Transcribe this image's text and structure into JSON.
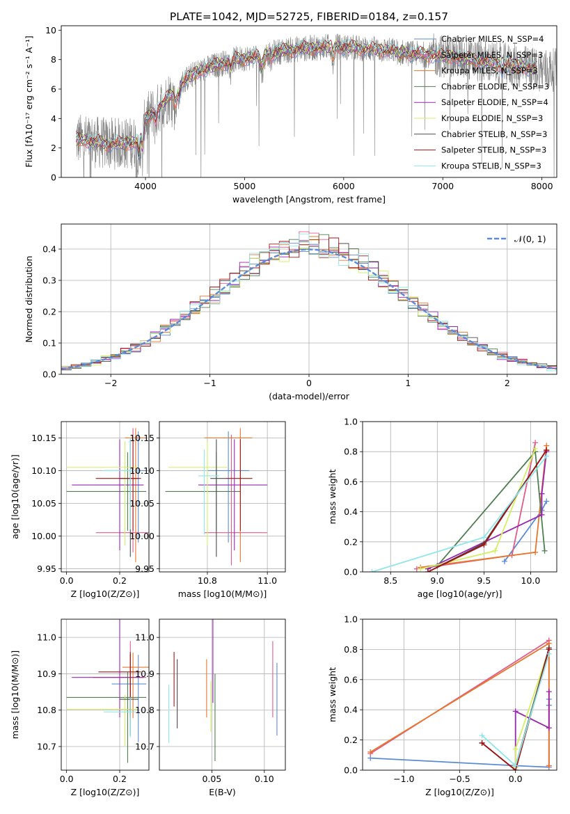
{
  "figure": {
    "title": "PLATE=1042, MJD=52725, FIBERID=0184, z=0.157"
  },
  "colors": {
    "c1": "#5b8bd6",
    "c2": "#e15b8a",
    "c3": "#e8762b",
    "c4": "#4f7f50",
    "c5": "#9a25b0",
    "c6": "#d2f064",
    "c7": "#4a4a4a",
    "c8": "#a61212",
    "c9": "#8fe6e8",
    "data": "#808080",
    "normal": "#5b8bd6"
  },
  "chart_data": [
    {
      "id": "spectrum",
      "type": "line",
      "xlabel": "wavelength [Angstrom, rest frame]",
      "ylabel": "Flux [fλ10⁻¹⁷ erg cm⁻² s⁻¹ A⁻¹]",
      "xlim": [
        3150,
        8150
      ],
      "ylim": [
        0,
        10.3
      ],
      "xticks": [
        4000,
        5000,
        6000,
        7000,
        8000
      ],
      "yticks": [
        0,
        2,
        4,
        6,
        8,
        10
      ],
      "grid": false,
      "legend_position": "right",
      "continuum": {
        "x": [
          3300,
          3400,
          3500,
          3600,
          3700,
          3800,
          3900,
          3950,
          4000,
          4100,
          4200,
          4300,
          4400,
          4500,
          4700,
          4900,
          5100,
          5300,
          5500,
          5700,
          5900,
          6100,
          6300,
          6500,
          6700,
          6900,
          7100,
          7300,
          7500,
          7700,
          7900,
          8000
        ],
        "y": [
          2.6,
          2.5,
          2.4,
          2.3,
          2.3,
          2.3,
          2.4,
          3.0,
          3.9,
          4.5,
          5.2,
          5.9,
          6.6,
          7.1,
          7.6,
          8.0,
          8.2,
          8.5,
          8.7,
          8.8,
          8.9,
          8.8,
          8.7,
          8.6,
          8.4,
          8.3,
          8.2,
          8.0,
          7.8,
          7.6,
          7.4,
          7.3
        ]
      },
      "legend": [
        "Chabrier MILES, N_SSP=4",
        "Salpeter MILES, N_SSP=3",
        "Kroupa MILES, N_SSP=3",
        "Chabrier ELODIE, N_SSP=3",
        "Salpeter ELODIE, N_SSP=4",
        "Kroupa ELODIE, N_SSP=3",
        "Chabrier STELIB, N_SSP=3",
        "Salpeter STELIB, N_SSP=3",
        "Kroupa STELIB, N_SSP=3"
      ]
    },
    {
      "id": "residuals",
      "type": "histogram",
      "xlabel": "(data-model)/error",
      "ylabel": "Normed distribution",
      "xlim": [
        -2.5,
        2.5
      ],
      "ylim": [
        0,
        0.48
      ],
      "xticks": [
        -2,
        -1,
        0,
        1,
        2
      ],
      "yticks": [
        0.0,
        0.1,
        0.2,
        0.3,
        0.4
      ],
      "grid": true,
      "legend_label": "𝒩(0, 1)",
      "legend_position": "top-right",
      "bin_width": 0.1,
      "bin_start": -2.5
    },
    {
      "id": "age-vs-Z",
      "type": "errorbar",
      "xlabel": "Z [log10(Z/Z⊙)]",
      "ylabel": "age  [log10(age/yr)]",
      "xlim": [
        -0.02,
        0.31
      ],
      "ylim": [
        9.945,
        10.175
      ],
      "xticks": [
        0.0,
        0.2
      ],
      "yticks": [
        9.95,
        10.0,
        10.05,
        10.1,
        10.15
      ],
      "grid": true,
      "points": [
        {
          "x": 0.27,
          "y": 10.1,
          "xerr": [
            0.13,
            0.03
          ],
          "yerr": [
            0.11,
            0.06
          ]
        },
        {
          "x": 0.25,
          "y": 10.005,
          "xerr": [
            0.14,
            0.06
          ],
          "yerr": [
            0.03,
            0.16
          ]
        },
        {
          "x": 0.26,
          "y": 10.15,
          "xerr": [
            0.04,
            0.04
          ],
          "yerr": [
            0.19,
            0.015
          ]
        },
        {
          "x": 0.23,
          "y": 10.068,
          "xerr": [
            0.23,
            0.07
          ],
          "yerr": [
            0.06,
            0.06
          ]
        },
        {
          "x": 0.2,
          "y": 10.078,
          "xerr": [
            0.18,
            0.09
          ],
          "yerr": [
            0.1,
            0.07
          ]
        },
        {
          "x": 0.22,
          "y": 10.105,
          "xerr": [
            0.22,
            0.05
          ],
          "yerr": [
            0.12,
            0.04
          ]
        },
        {
          "x": 0.24,
          "y": 10.088,
          "xerr": [
            0.04,
            0.03
          ],
          "yerr": [
            0.12,
            0.06
          ]
        },
        {
          "x": 0.25,
          "y": 10.088,
          "xerr": [
            0.14,
            0.03
          ],
          "yerr": [
            0.08,
            0.06
          ]
        },
        {
          "x": 0.24,
          "y": 10.1,
          "xerr": [
            0.1,
            0.03
          ],
          "yerr": [
            0.09,
            0.05
          ]
        }
      ]
    },
    {
      "id": "age-vs-mass",
      "type": "errorbar",
      "xlabel": "mass [log10(M/M⊙)]",
      "ylabel": "",
      "xlim": [
        10.64,
        11.06
      ],
      "ylim": [
        9.945,
        10.175
      ],
      "xticks": [
        10.8,
        11.0
      ],
      "yticks": [
        9.95,
        10.0,
        10.05,
        10.1,
        10.15
      ],
      "grid": true,
      "points": [
        {
          "x": 10.87,
          "y": 10.1,
          "xerr": [
            0.07,
            0.07
          ],
          "yerr": [
            0.11,
            0.06
          ]
        },
        {
          "x": 10.88,
          "y": 10.005,
          "xerr": [
            0.09,
            0.12
          ],
          "yerr": [
            0.05,
            0.15
          ]
        },
        {
          "x": 10.91,
          "y": 10.15,
          "xerr": [
            0.12,
            0.04
          ],
          "yerr": [
            0.19,
            0.015
          ]
        },
        {
          "x": 10.83,
          "y": 10.068,
          "xerr": [
            0.17,
            0.08
          ],
          "yerr": [
            0.06,
            0.06
          ]
        },
        {
          "x": 10.89,
          "y": 10.078,
          "xerr": [
            0.12,
            0.11
          ],
          "yerr": [
            0.1,
            0.07
          ]
        },
        {
          "x": 10.8,
          "y": 10.105,
          "xerr": [
            0.13,
            0.07
          ],
          "yerr": [
            0.12,
            0.04
          ]
        },
        {
          "x": 10.83,
          "y": 10.088,
          "xerr": [
            0.02,
            0.03
          ],
          "yerr": [
            0.12,
            0.06
          ]
        },
        {
          "x": 10.91,
          "y": 10.088,
          "xerr": [
            0.05,
            0.04
          ],
          "yerr": [
            0.08,
            0.06
          ]
        },
        {
          "x": 10.79,
          "y": 10.092,
          "xerr": [
            0.02,
            0.05
          ],
          "yerr": [
            0.09,
            0.04
          ]
        }
      ]
    },
    {
      "id": "weight-vs-age",
      "type": "line",
      "xlabel": "age  [log10(age/yr)]",
      "ylabel": "mass weight",
      "xlim": [
        8.2,
        10.28
      ],
      "ylim": [
        0,
        1.0
      ],
      "xticks": [
        8.5,
        9.0,
        9.5,
        10.0
      ],
      "yticks": [
        0.0,
        0.2,
        0.4,
        0.6,
        0.8,
        1.0
      ],
      "grid": true,
      "series": [
        {
          "x": [
            9.72,
            10.12,
            10.17
          ],
          "y": [
            0.07,
            0.41,
            0.47
          ]
        },
        {
          "x": [
            8.78,
            9.8,
            10.05
          ],
          "y": [
            0.02,
            0.11,
            0.86
          ]
        },
        {
          "x": [
            8.82,
            10.05,
            10.17
          ],
          "y": [
            0.03,
            0.13,
            0.84
          ]
        },
        {
          "x": [
            9.0,
            10.05,
            10.15
          ],
          "y": [
            0.04,
            0.8,
            0.14
          ]
        },
        {
          "x": [
            8.9,
            10.12,
            10.12,
            10.17
          ],
          "y": [
            0.02,
            0.38,
            0.52,
            0.8
          ]
        },
        {
          "x": [
            8.82,
            9.62,
            10.05
          ],
          "y": [
            0.02,
            0.14,
            0.82
          ]
        },
        {
          "x": [
            8.9,
            9.5,
            10.17
          ],
          "y": [
            0.0,
            0.19,
            0.81
          ]
        },
        {
          "x": [
            8.9,
            9.5,
            10.17
          ],
          "y": [
            0.0,
            0.18,
            0.81
          ]
        },
        {
          "x": [
            8.3,
            9.5,
            10.17
          ],
          "y": [
            0.0,
            0.23,
            0.77
          ]
        }
      ]
    },
    {
      "id": "mass-vs-Z",
      "type": "errorbar",
      "xlabel": "Z [log10(Z/Z⊙)]",
      "ylabel": "mass [log10(M/M⊙)]",
      "xlim": [
        -0.02,
        0.31
      ],
      "ylim": [
        10.635,
        11.05
      ],
      "xticks": [
        0.0,
        0.2
      ],
      "yticks": [
        10.7,
        10.8,
        10.9,
        11.0
      ],
      "grid": true,
      "points": [
        {
          "x": 0.27,
          "y": 10.872,
          "xerr": [
            0.1,
            0.03
          ],
          "yerr": [
            0.16,
            0.08
          ]
        },
        {
          "x": 0.24,
          "y": 10.89,
          "xerr": [
            0.14,
            0.06
          ],
          "yerr": [
            0.11,
            0.1
          ]
        },
        {
          "x": 0.25,
          "y": 10.918,
          "xerr": [
            0.04,
            0.06
          ],
          "yerr": [
            0.14,
            0.04
          ]
        },
        {
          "x": 0.23,
          "y": 10.835,
          "xerr": [
            0.23,
            0.07
          ],
          "yerr": [
            0.18,
            0.07
          ]
        },
        {
          "x": 0.2,
          "y": 10.89,
          "xerr": [
            0.18,
            0.09
          ],
          "yerr": [
            0.11,
            0.24
          ]
        },
        {
          "x": 0.22,
          "y": 10.802,
          "xerr": [
            0.22,
            0.05
          ],
          "yerr": [
            0.1,
            0.04
          ]
        },
        {
          "x": 0.24,
          "y": 10.83,
          "xerr": [
            0.04,
            0.03
          ],
          "yerr": [
            0.1,
            0.13
          ]
        },
        {
          "x": 0.24,
          "y": 10.905,
          "xerr": [
            0.12,
            0.04
          ],
          "yerr": [
            0.12,
            0.05
          ]
        },
        {
          "x": 0.24,
          "y": 10.795,
          "xerr": [
            0.1,
            0.02
          ],
          "yerr": [
            0.07,
            0.04
          ]
        }
      ]
    },
    {
      "id": "mass-vs-EBV",
      "type": "errorbar",
      "xlabel": "E(B-V)",
      "ylabel": "",
      "xlim": [
        0.0,
        0.12
      ],
      "ylim": [
        10.635,
        11.05
      ],
      "xticks": [
        0.05,
        0.1
      ],
      "yticks": [
        10.7,
        10.8,
        10.9,
        11.0
      ],
      "grid": true,
      "points": [
        {
          "x": 0.112,
          "y": 10.84,
          "xerr": [
            0,
            0
          ],
          "yerr": [
            0.11,
            0.09
          ]
        },
        {
          "x": 0.108,
          "y": 10.88,
          "xerr": [
            0,
            0
          ],
          "yerr": [
            0.1,
            0.11
          ]
        },
        {
          "x": 0.045,
          "y": 10.86,
          "xerr": [
            0,
            0
          ],
          "yerr": [
            0.08,
            0.08
          ]
        },
        {
          "x": 0.053,
          "y": 10.78,
          "xerr": [
            0,
            0
          ],
          "yerr": [
            0.12,
            0.12
          ]
        },
        {
          "x": 0.051,
          "y": 10.93,
          "xerr": [
            0,
            0
          ],
          "yerr": [
            0.11,
            0.2
          ]
        },
        {
          "x": 0.049,
          "y": 10.81,
          "xerr": [
            0,
            0
          ],
          "yerr": [
            0.07,
            0.07
          ]
        },
        {
          "x": 0.017,
          "y": 10.85,
          "xerr": [
            0,
            0
          ],
          "yerr": [
            0.1,
            0.09
          ]
        },
        {
          "x": 0.014,
          "y": 10.88,
          "xerr": [
            0,
            0
          ],
          "yerr": [
            0.07,
            0.08
          ]
        },
        {
          "x": 0.009,
          "y": 10.79,
          "xerr": [
            0,
            0
          ],
          "yerr": [
            0.08,
            0.08
          ]
        }
      ]
    },
    {
      "id": "weight-vs-Z",
      "type": "line",
      "xlabel": "Z [log10(Z/Z⊙)]",
      "ylabel": "mass weight",
      "xlim": [
        -1.37,
        0.37
      ],
      "ylim": [
        0,
        1.0
      ],
      "xticks": [
        -1.0,
        -0.5,
        0.0
      ],
      "yticks": [
        0.0,
        0.2,
        0.4,
        0.6,
        0.8,
        1.0
      ],
      "grid": true,
      "series": [
        {
          "x": [
            -1.3,
            0.0,
            0.3,
            0.3,
            0.3
          ],
          "y": [
            0.08,
            0.03,
            0.02,
            0.43,
            0.47
          ]
        },
        {
          "x": [
            -1.3,
            0.3,
            0.3
          ],
          "y": [
            0.11,
            0.86,
            0.03
          ]
        },
        {
          "x": [
            -1.3,
            0.3,
            0.3
          ],
          "y": [
            0.12,
            0.84,
            0.03
          ]
        },
        {
          "x": [
            0.0,
            0.3,
            0.3
          ],
          "y": [
            0.03,
            0.8,
            0.8
          ]
        },
        {
          "x": [
            0.0,
            0.0,
            0.3,
            0.3
          ],
          "y": [
            0.02,
            0.39,
            0.28,
            0.52
          ]
        },
        {
          "x": [
            0.0,
            0.0,
            0.3
          ],
          "y": [
            0.02,
            0.14,
            0.8
          ]
        },
        {
          "x": [
            -0.3,
            0.0,
            0.3
          ],
          "y": [
            0.18,
            0.0,
            0.81
          ]
        },
        {
          "x": [
            -0.3,
            0.0,
            0.3
          ],
          "y": [
            0.18,
            0.0,
            0.8
          ]
        },
        {
          "x": [
            -0.3,
            0.0,
            0.3
          ],
          "y": [
            0.23,
            0.03,
            0.77
          ]
        }
      ]
    }
  ]
}
